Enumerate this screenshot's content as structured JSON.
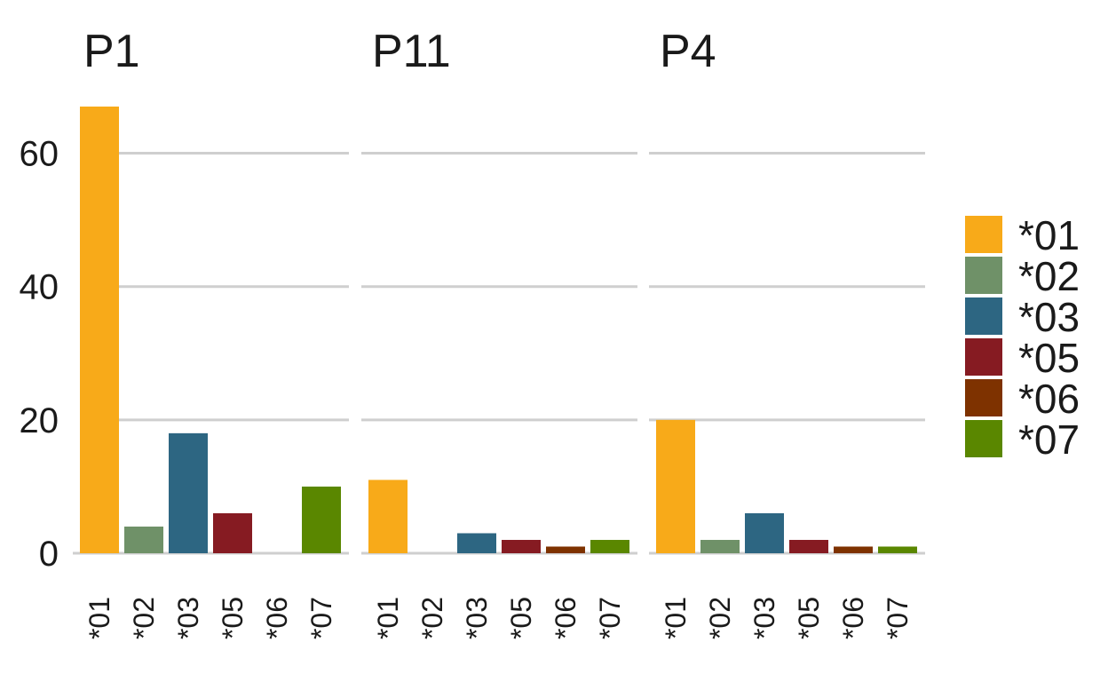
{
  "chart_data": {
    "type": "bar",
    "categories": [
      "*01",
      "*02",
      "*03",
      "*05",
      "*06",
      "*07"
    ],
    "colors": {
      "*01": "#f8aa19",
      "*02": "#6f9168",
      "*03": "#2d6682",
      "*05": "#861b22",
      "*06": "#7e3200",
      "*07": "#5a8700"
    },
    "ylim": [
      0,
      67
    ],
    "y_ticks": [
      0,
      20,
      40,
      60
    ],
    "grid": true,
    "legend": {
      "position": "right",
      "entries": [
        "*01",
        "*02",
        "*03",
        "*05",
        "*06",
        "*07"
      ]
    },
    "facets": [
      {
        "title": "P1",
        "values": [
          67,
          4,
          18,
          6,
          0,
          10
        ]
      },
      {
        "title": "P11",
        "values": [
          11,
          0,
          3,
          2,
          1,
          2
        ]
      },
      {
        "title": "P4",
        "values": [
          20,
          2,
          6,
          2,
          1,
          1
        ]
      }
    ]
  }
}
